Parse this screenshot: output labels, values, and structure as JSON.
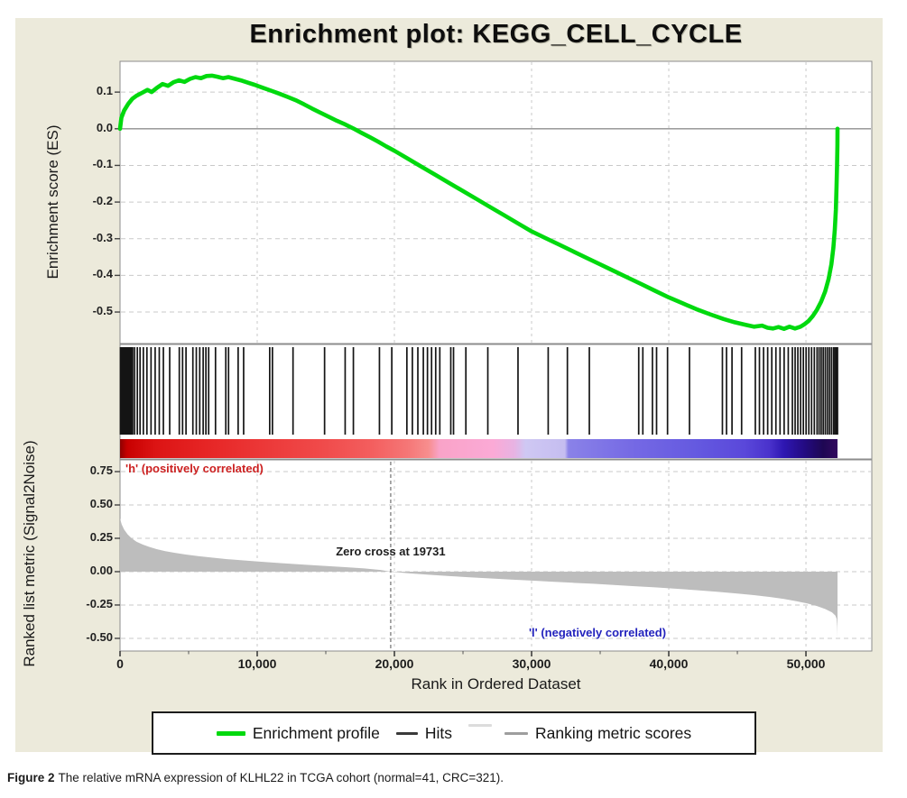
{
  "title": "Enrichment plot: KEGG_CELL_CYCLE",
  "caption": {
    "label": "Figure 2",
    "text": "The relative mRNA expression of KLHL22 in TCGA cohort (normal=41, CRC=321)."
  },
  "legend": {
    "items": [
      {
        "label": "Enrichment profile",
        "color": "#00d90e"
      },
      {
        "label": "Hits",
        "color": "#3a3a3a"
      },
      {
        "label": "Ranking metric scores",
        "color": "#9e9e9e"
      }
    ]
  },
  "chart_data": {
    "type": "line",
    "subtype": "gsea_enrichment_plot",
    "title": "Enrichment plot: KEGG_CELL_CYCLE",
    "x_axis": {
      "label": "Rank in Ordered Dataset",
      "lim": [
        0,
        54800
      ],
      "minor_tick_step": 5000,
      "ticks": [
        {
          "value": 0,
          "label": "0"
        },
        {
          "value": 10000,
          "label": "10,000"
        },
        {
          "value": 20000,
          "label": "20,000"
        },
        {
          "value": 30000,
          "label": "30,000"
        },
        {
          "value": 40000,
          "label": "40,000"
        },
        {
          "value": 50000,
          "label": "50,000"
        }
      ]
    },
    "total_ranks": 52300,
    "es_panel": {
      "y_label": "Enrichment score (ES)",
      "ylim": [
        -0.586,
        0.184
      ],
      "zero_line": 0.0,
      "ticks": [
        {
          "value": 0.1,
          "label": "0.1"
        },
        {
          "value": 0.0,
          "label": "0.0"
        },
        {
          "value": -0.1,
          "label": "-0.1"
        },
        {
          "value": -0.2,
          "label": "-0.2"
        },
        {
          "value": -0.3,
          "label": "-0.3"
        },
        {
          "value": -0.4,
          "label": "-0.4"
        },
        {
          "value": -0.5,
          "label": "-0.5"
        }
      ],
      "series": {
        "name": "Enrichment profile",
        "color": "#00d90e",
        "es_max": 0.145,
        "es_min": -0.546,
        "points": [
          [
            0,
            0.0
          ],
          [
            100,
            0.03
          ],
          [
            300,
            0.05
          ],
          [
            600,
            0.068
          ],
          [
            900,
            0.082
          ],
          [
            1200,
            0.09
          ],
          [
            1600,
            0.098
          ],
          [
            2000,
            0.106
          ],
          [
            2300,
            0.1
          ],
          [
            2700,
            0.112
          ],
          [
            3100,
            0.122
          ],
          [
            3500,
            0.117
          ],
          [
            3900,
            0.127
          ],
          [
            4300,
            0.132
          ],
          [
            4700,
            0.128
          ],
          [
            5100,
            0.136
          ],
          [
            5500,
            0.141
          ],
          [
            5900,
            0.138
          ],
          [
            6300,
            0.144
          ],
          [
            6700,
            0.145
          ],
          [
            7100,
            0.142
          ],
          [
            7500,
            0.138
          ],
          [
            7900,
            0.141
          ],
          [
            8300,
            0.137
          ],
          [
            8800,
            0.132
          ],
          [
            9300,
            0.126
          ],
          [
            9800,
            0.12
          ],
          [
            10400,
            0.112
          ],
          [
            11000,
            0.104
          ],
          [
            11600,
            0.096
          ],
          [
            12200,
            0.087
          ],
          [
            12800,
            0.078
          ],
          [
            13400,
            0.067
          ],
          [
            14000,
            0.055
          ],
          [
            14600,
            0.044
          ],
          [
            15200,
            0.033
          ],
          [
            15800,
            0.022
          ],
          [
            16400,
            0.012
          ],
          [
            17000,
            0.001
          ],
          [
            17600,
            -0.011
          ],
          [
            18200,
            -0.023
          ],
          [
            18800,
            -0.035
          ],
          [
            19400,
            -0.048
          ],
          [
            20000,
            -0.06
          ],
          [
            21000,
            -0.082
          ],
          [
            22000,
            -0.104
          ],
          [
            23000,
            -0.126
          ],
          [
            24000,
            -0.148
          ],
          [
            25000,
            -0.17
          ],
          [
            26000,
            -0.192
          ],
          [
            27000,
            -0.214
          ],
          [
            28000,
            -0.236
          ],
          [
            29000,
            -0.258
          ],
          [
            30000,
            -0.28
          ],
          [
            31000,
            -0.298
          ],
          [
            32000,
            -0.316
          ],
          [
            33000,
            -0.334
          ],
          [
            34000,
            -0.352
          ],
          [
            35000,
            -0.37
          ],
          [
            36000,
            -0.388
          ],
          [
            37000,
            -0.406
          ],
          [
            38000,
            -0.424
          ],
          [
            39000,
            -0.442
          ],
          [
            40000,
            -0.46
          ],
          [
            41000,
            -0.476
          ],
          [
            42000,
            -0.492
          ],
          [
            43000,
            -0.506
          ],
          [
            44000,
            -0.519
          ],
          [
            44800,
            -0.528
          ],
          [
            45600,
            -0.535
          ],
          [
            46200,
            -0.54
          ],
          [
            46800,
            -0.537
          ],
          [
            47200,
            -0.543
          ],
          [
            47600,
            -0.545
          ],
          [
            48000,
            -0.541
          ],
          [
            48400,
            -0.546
          ],
          [
            48800,
            -0.54
          ],
          [
            49200,
            -0.545
          ],
          [
            49600,
            -0.54
          ],
          [
            49900,
            -0.533
          ],
          [
            50200,
            -0.524
          ],
          [
            50500,
            -0.511
          ],
          [
            50800,
            -0.494
          ],
          [
            51100,
            -0.472
          ],
          [
            51400,
            -0.444
          ],
          [
            51650,
            -0.41
          ],
          [
            51850,
            -0.37
          ],
          [
            52000,
            -0.325
          ],
          [
            52100,
            -0.275
          ],
          [
            52180,
            -0.22
          ],
          [
            52230,
            -0.16
          ],
          [
            52270,
            -0.1
          ],
          [
            52295,
            -0.045
          ],
          [
            52300,
            0.0
          ]
        ]
      }
    },
    "hits_panel": {
      "name": "Hits",
      "color": "#151515",
      "hit_ranks": [
        30,
        80,
        130,
        180,
        230,
        290,
        350,
        410,
        470,
        530,
        590,
        660,
        740,
        830,
        920,
        1060,
        1260,
        1460,
        1700,
        1960,
        2260,
        2560,
        2860,
        3160,
        3620,
        4320,
        4560,
        4810,
        5310,
        5560,
        5810,
        6060,
        6260,
        6460,
        6960,
        7710,
        7910,
        8610,
        9010,
        10910,
        11110,
        12610,
        14910,
        16410,
        17010,
        18910,
        19810,
        20910,
        21310,
        21710,
        22110,
        22410,
        22710,
        23010,
        23310,
        24110,
        24310,
        25210,
        26810,
        29010,
        31210,
        32610,
        34210,
        37810,
        38110,
        38810,
        39110,
        39910,
        41510,
        43910,
        44210,
        44610,
        45310,
        46310,
        46610,
        46910,
        47210,
        47510,
        47810,
        48110,
        48410,
        48710,
        49010,
        49210,
        49410,
        49610,
        49810,
        50010,
        50210,
        50410,
        50610,
        50810,
        50960,
        51110,
        51260,
        51410,
        51560,
        51710,
        51860,
        52010,
        52110,
        52210,
        52260,
        52300
      ]
    },
    "color_bar": {
      "data_end_rank": 52300,
      "stops": [
        {
          "pos": 0.0,
          "color": "#8e0000"
        },
        {
          "pos": 0.01,
          "color": "#c80000"
        },
        {
          "pos": 0.05,
          "color": "#dc1414"
        },
        {
          "pos": 0.12,
          "color": "#e62525"
        },
        {
          "pos": 0.2,
          "color": "#ec3838"
        },
        {
          "pos": 0.28,
          "color": "#f04a4a"
        },
        {
          "pos": 0.35,
          "color": "#f35e5e"
        },
        {
          "pos": 0.4,
          "color": "#f57676"
        },
        {
          "pos": 0.43,
          "color": "#f78e8e"
        },
        {
          "pos": 0.445,
          "color": "#f9a3c8"
        },
        {
          "pos": 0.52,
          "color": "#fbaad6"
        },
        {
          "pos": 0.55,
          "color": "#e7b3e3"
        },
        {
          "pos": 0.565,
          "color": "#cfc8f3"
        },
        {
          "pos": 0.62,
          "color": "#c5bdf0"
        },
        {
          "pos": 0.625,
          "color": "#8a82e8"
        },
        {
          "pos": 0.72,
          "color": "#7468e4"
        },
        {
          "pos": 0.8,
          "color": "#655ae0"
        },
        {
          "pos": 0.87,
          "color": "#5a48da"
        },
        {
          "pos": 0.905,
          "color": "#4a32cc"
        },
        {
          "pos": 0.925,
          "color": "#2e17b2"
        },
        {
          "pos": 0.955,
          "color": "#230a80"
        },
        {
          "pos": 0.98,
          "color": "#1e0753"
        },
        {
          "pos": 1.0,
          "color": "#33095e"
        }
      ]
    },
    "ranked_panel": {
      "y_label": "Ranked list metric (Signal2Noise)",
      "ylim": [
        -0.595,
        0.838
      ],
      "ticks": [
        {
          "value": 0.75,
          "label": "0.75"
        },
        {
          "value": 0.5,
          "label": "0.50"
        },
        {
          "value": 0.25,
          "label": "0.25"
        },
        {
          "value": 0.0,
          "label": "0.00"
        },
        {
          "value": -0.25,
          "label": "-0.25"
        },
        {
          "value": -0.5,
          "label": "-0.50"
        }
      ],
      "zero_cross": {
        "rank": 19731,
        "label": "Zero cross at 19731"
      },
      "annotations": {
        "positive": {
          "text": "'h' (positively correlated)",
          "color": "#cc2121"
        },
        "negative": {
          "text": "'l' (negatively correlated)",
          "color": "#2323bd"
        }
      },
      "series": {
        "name": "Ranking metric scores",
        "color": "#bdbdbd",
        "points": [
          [
            0,
            0.4
          ],
          [
            120,
            0.355
          ],
          [
            300,
            0.315
          ],
          [
            550,
            0.28
          ],
          [
            850,
            0.25
          ],
          [
            1200,
            0.225
          ],
          [
            1650,
            0.203
          ],
          [
            2150,
            0.185
          ],
          [
            2700,
            0.168
          ],
          [
            3300,
            0.154
          ],
          [
            4000,
            0.141
          ],
          [
            4800,
            0.128
          ],
          [
            5700,
            0.116
          ],
          [
            6700,
            0.105
          ],
          [
            7800,
            0.094
          ],
          [
            9000,
            0.084
          ],
          [
            10300,
            0.074
          ],
          [
            11700,
            0.064
          ],
          [
            13200,
            0.054
          ],
          [
            14800,
            0.044
          ],
          [
            16300,
            0.034
          ],
          [
            17800,
            0.024
          ],
          [
            19000,
            0.013
          ],
          [
            19731,
            0.0
          ],
          [
            21000,
            -0.012
          ],
          [
            22500,
            -0.023
          ],
          [
            24000,
            -0.033
          ],
          [
            25500,
            -0.042
          ],
          [
            27000,
            -0.051
          ],
          [
            28500,
            -0.059
          ],
          [
            30000,
            -0.067
          ],
          [
            31500,
            -0.075
          ],
          [
            33000,
            -0.083
          ],
          [
            34500,
            -0.091
          ],
          [
            36000,
            -0.1
          ],
          [
            37500,
            -0.109
          ],
          [
            39000,
            -0.118
          ],
          [
            40500,
            -0.128
          ],
          [
            42000,
            -0.139
          ],
          [
            43500,
            -0.151
          ],
          [
            45000,
            -0.164
          ],
          [
            46200,
            -0.176
          ],
          [
            47400,
            -0.19
          ],
          [
            48400,
            -0.205
          ],
          [
            49300,
            -0.221
          ],
          [
            50100,
            -0.239
          ],
          [
            50800,
            -0.258
          ],
          [
            51400,
            -0.28
          ],
          [
            51900,
            -0.305
          ],
          [
            52150,
            -0.33
          ],
          [
            52240,
            -0.355
          ],
          [
            52280,
            -0.41
          ],
          [
            52295,
            -0.46
          ],
          [
            52300,
            -0.5
          ]
        ]
      }
    }
  }
}
